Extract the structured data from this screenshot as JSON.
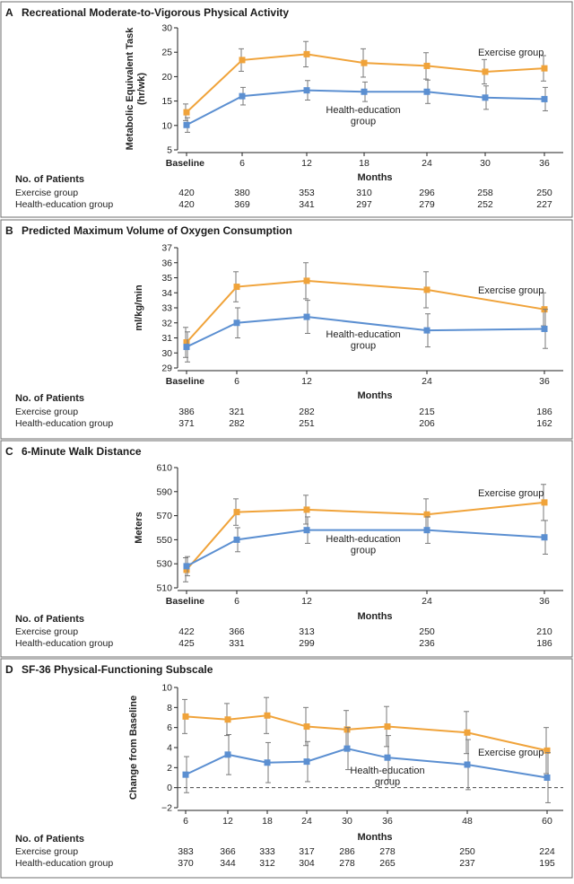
{
  "colors": {
    "exercise": "#f0a33a",
    "health_education": "#5b8fd1"
  },
  "n_header": "No. of Patients",
  "chart_data": [
    {
      "type": "line",
      "panel": "A",
      "title": "Recreational Moderate-to-Vigorous Physical Activity",
      "ylabel": "Metabolic Equivalent Task (hr/wk)",
      "xlabel": "Months",
      "ylim": [
        5,
        30
      ],
      "yticks": [
        5,
        10,
        15,
        20,
        25,
        30
      ],
      "x_values": [
        0,
        6,
        12,
        18,
        24,
        30,
        36
      ],
      "x_tick_labels": [
        "Baseline",
        "6",
        "12",
        "18",
        "24",
        "30",
        "36"
      ],
      "series": [
        {
          "name": "Exercise group",
          "color_key": "exercise",
          "values": [
            12.7,
            23.4,
            24.6,
            22.8,
            22.2,
            21.0,
            21.7
          ],
          "errors": [
            1.7,
            2.3,
            2.6,
            2.9,
            2.7,
            2.5,
            2.6
          ]
        },
        {
          "name": "Health-education group",
          "color_key": "health_education",
          "values": [
            10.1,
            16.0,
            17.2,
            16.9,
            16.9,
            15.7,
            15.4
          ],
          "errors": [
            1.5,
            1.8,
            2.0,
            2.0,
            2.4,
            2.4,
            2.4
          ]
        }
      ],
      "n_rows": [
        {
          "label": "Exercise group",
          "values": [
            "420",
            "380",
            "353",
            "310",
            "296",
            "258",
            "250"
          ]
        },
        {
          "label": "Health-education group",
          "values": [
            "420",
            "369",
            "341",
            "297",
            "279",
            "252",
            "227"
          ]
        }
      ]
    },
    {
      "type": "line",
      "panel": "B",
      "title": "Predicted Maximum Volume of Oxygen Consumption",
      "ylabel": "ml/kg/min",
      "xlabel": "Months",
      "ylim": [
        29,
        37
      ],
      "yticks": [
        29,
        30,
        31,
        32,
        33,
        34,
        35,
        36,
        37
      ],
      "x_values": [
        0,
        6,
        12,
        24,
        36
      ],
      "x_tick_labels": [
        "Baseline",
        "6",
        "12",
        "24",
        "36"
      ],
      "series": [
        {
          "name": "Exercise group",
          "color_key": "exercise",
          "values": [
            30.7,
            34.4,
            34.8,
            34.2,
            32.9
          ],
          "errors": [
            1.0,
            1.0,
            1.2,
            1.2,
            1.1
          ]
        },
        {
          "name": "Health-education group",
          "color_key": "health_education",
          "values": [
            30.4,
            32.0,
            32.4,
            31.5,
            31.6
          ],
          "errors": [
            1.0,
            1.0,
            1.1,
            1.1,
            1.3
          ]
        }
      ],
      "n_rows": [
        {
          "label": "Exercise group",
          "values": [
            "386",
            "321",
            "282",
            "215",
            "186"
          ]
        },
        {
          "label": "Health-education group",
          "values": [
            "371",
            "282",
            "251",
            "206",
            "162"
          ]
        }
      ]
    },
    {
      "type": "line",
      "panel": "C",
      "title": "6-Minute Walk Distance",
      "ylabel": "Meters",
      "xlabel": "Months",
      "ylim": [
        510,
        610
      ],
      "yticks": [
        510,
        530,
        550,
        570,
        590,
        610
      ],
      "x_values": [
        0,
        6,
        12,
        24,
        36
      ],
      "x_tick_labels": [
        "Baseline",
        "6",
        "12",
        "24",
        "36"
      ],
      "series": [
        {
          "name": "Exercise group",
          "color_key": "exercise",
          "values": [
            525,
            573,
            575,
            571,
            581
          ],
          "errors": [
            10,
            11,
            12,
            13,
            15
          ]
        },
        {
          "name": "Health-education group",
          "color_key": "health_education",
          "values": [
            528,
            550,
            558,
            558,
            552
          ],
          "errors": [
            8,
            10,
            11,
            11,
            14
          ]
        }
      ],
      "n_rows": [
        {
          "label": "Exercise group",
          "values": [
            "422",
            "366",
            "313",
            "250",
            "210"
          ]
        },
        {
          "label": "Health-education group",
          "values": [
            "425",
            "331",
            "299",
            "236",
            "186"
          ]
        }
      ]
    },
    {
      "type": "line",
      "panel": "D",
      "title": "SF-36 Physical-Functioning Subscale",
      "ylabel": "Change from Baseline",
      "xlabel": "Months",
      "ylim": [
        -2,
        10
      ],
      "yticks": [
        -2,
        0,
        2,
        4,
        6,
        8,
        10
      ],
      "reference_line": 0,
      "x_values": [
        6,
        12,
        18,
        24,
        30,
        36,
        48,
        60
      ],
      "x_tick_labels": [
        "6",
        "12",
        "18",
        "24",
        "30",
        "36",
        "48",
        "60"
      ],
      "series": [
        {
          "name": "Exercise group",
          "color_key": "exercise",
          "values": [
            7.1,
            6.8,
            7.2,
            6.1,
            5.8,
            6.1,
            5.5,
            3.7
          ],
          "errors": [
            1.7,
            1.6,
            1.8,
            1.9,
            1.9,
            2.0,
            2.1,
            2.3
          ]
        },
        {
          "name": "Health-education group",
          "color_key": "health_education",
          "values": [
            1.3,
            3.3,
            2.5,
            2.6,
            3.9,
            3.0,
            2.3,
            1.0
          ],
          "errors": [
            1.8,
            2.0,
            2.0,
            2.0,
            2.1,
            2.2,
            2.5,
            2.5
          ]
        }
      ],
      "n_rows": [
        {
          "label": "Exercise group",
          "values": [
            "383",
            "366",
            "333",
            "317",
            "286",
            "278",
            "250",
            "224"
          ]
        },
        {
          "label": "Health-education group",
          "values": [
            "370",
            "344",
            "312",
            "304",
            "278",
            "265",
            "237",
            "195"
          ]
        }
      ]
    }
  ]
}
